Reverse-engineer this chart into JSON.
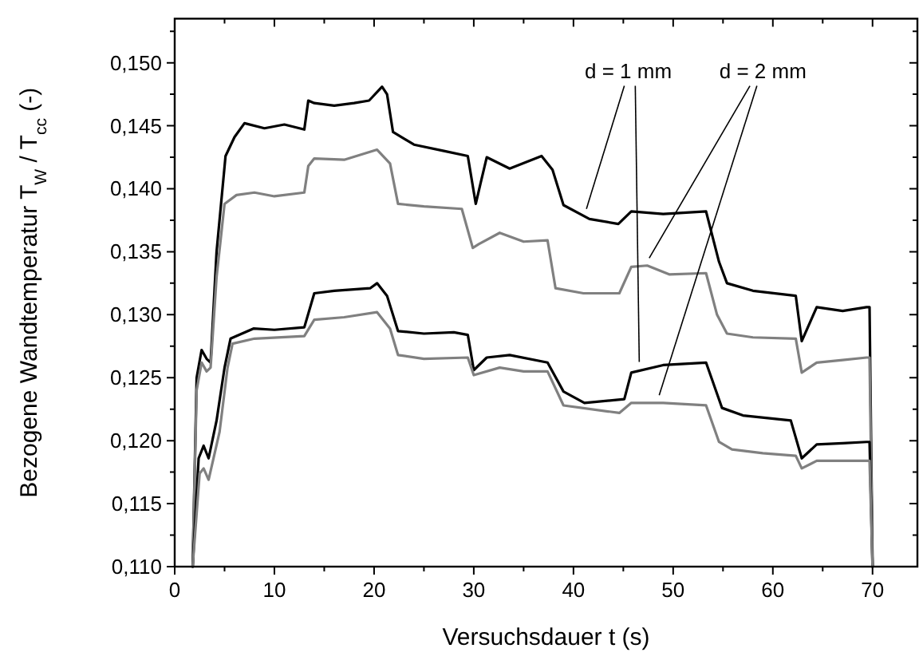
{
  "chart_data": {
    "type": "line",
    "xlabel": "Versuchsdauer t (s)",
    "ylabel": "Bezogene Wandtemperatur T$_{W}$ / T$_{cc}$ (-)",
    "xlim": [
      0,
      74.5
    ],
    "ylim": [
      0.11,
      0.1535
    ],
    "grid": false,
    "marker": "none",
    "line_style": "solid",
    "xticks": [
      0,
      {
        "value": 5,
        "label": null
      },
      10,
      {
        "value": 15,
        "label": null
      },
      20,
      {
        "value": 25,
        "label": null
      },
      30,
      {
        "value": 35,
        "label": null
      },
      40,
      {
        "value": 45,
        "label": null
      },
      50,
      {
        "value": 55,
        "label": null
      },
      60,
      {
        "value": 65,
        "label": null
      },
      70
    ],
    "yticks": [
      {
        "value": 0.11,
        "label": "0,110"
      },
      {
        "value": 0.1125,
        "label": null
      },
      {
        "value": 0.115,
        "label": "0,115"
      },
      {
        "value": 0.1175,
        "label": null
      },
      {
        "value": 0.12,
        "label": "0,120"
      },
      {
        "value": 0.1225,
        "label": null
      },
      {
        "value": 0.125,
        "label": "0,125"
      },
      {
        "value": 0.1275,
        "label": null
      },
      {
        "value": 0.13,
        "label": "0,130"
      },
      {
        "value": 0.1325,
        "label": null
      },
      {
        "value": 0.135,
        "label": "0,135"
      },
      {
        "value": 0.1375,
        "label": null
      },
      {
        "value": 0.14,
        "label": "0,140"
      },
      {
        "value": 0.1425,
        "label": null
      },
      {
        "value": 0.145,
        "label": "0,145"
      },
      {
        "value": 0.1475,
        "label": null
      },
      {
        "value": 0.15,
        "label": "0,150"
      },
      {
        "value": 0.1525,
        "label": null
      }
    ],
    "annotations": [
      {
        "text": "d = 1 mm",
        "x": 41.3,
        "y": 0.1384
      },
      {
        "text": "d = 2 mm",
        "x": 47.6,
        "y": 0.1345
      }
    ],
    "series": [
      {
        "color": "#000000",
        "x": [
          1.8,
          2.2,
          2.7,
          3.2,
          3.6,
          4.2,
          5.1,
          6,
          7,
          9,
          11,
          13,
          13.4,
          14,
          16,
          18,
          19.5,
          20.8,
          21.3,
          21.9,
          24,
          27,
          29.4,
          30.2,
          30.7,
          31.3,
          33.6,
          36.8,
          37.9,
          39,
          41.6,
          44.5,
          45.8,
          49,
          53.3,
          54.6,
          55.4,
          58,
          62.3,
          62.9,
          64.4,
          67,
          69.4,
          69.7,
          70
        ],
        "values": [
          0.11,
          0.125,
          0.1272,
          0.1265,
          0.1262,
          0.135,
          0.1426,
          0.1441,
          0.1452,
          0.1448,
          0.1451,
          0.1447,
          0.147,
          0.1468,
          0.1466,
          0.1468,
          0.147,
          0.1481,
          0.1475,
          0.1445,
          0.1435,
          0.143,
          0.1426,
          0.1388,
          0.1405,
          0.1425,
          0.1416,
          0.1426,
          0.1415,
          0.1387,
          0.1376,
          0.1372,
          0.1382,
          0.138,
          0.1382,
          0.1342,
          0.1325,
          0.1319,
          0.1315,
          0.1279,
          0.1306,
          0.1303,
          0.1306,
          0.1306,
          0.11
        ]
      },
      {
        "color": "#808080",
        "x": [
          1.8,
          2.2,
          2.7,
          3.2,
          3.6,
          4.2,
          5,
          6.2,
          8,
          10,
          13,
          13.4,
          14,
          17,
          20.3,
          21.6,
          22.4,
          25,
          28.8,
          29.9,
          30.5,
          32.6,
          35,
          37.4,
          38.2,
          41,
          44.6,
          45.8,
          47.4,
          49.6,
          53.3,
          54.4,
          55.4,
          58,
          62.3,
          62.9,
          64.4,
          67,
          69.4,
          69.7,
          70
        ],
        "values": [
          0.11,
          0.124,
          0.1262,
          0.1255,
          0.1258,
          0.133,
          0.1388,
          0.1395,
          0.1397,
          0.1394,
          0.1397,
          0.1418,
          0.1424,
          0.1423,
          0.1431,
          0.142,
          0.1388,
          0.1386,
          0.1384,
          0.1353,
          0.1356,
          0.1365,
          0.1358,
          0.1359,
          0.1321,
          0.1317,
          0.1317,
          0.1338,
          0.1339,
          0.1332,
          0.1333,
          0.13,
          0.1285,
          0.1282,
          0.1281,
          0.1254,
          0.1262,
          0.1264,
          0.1266,
          0.1266,
          0.11
        ]
      },
      {
        "color": "#000000",
        "x": [
          1.8,
          2.4,
          2.9,
          3.4,
          4.2,
          5,
          5.6,
          7.9,
          10,
          13,
          14,
          16,
          19.6,
          20.3,
          21.3,
          22.4,
          25,
          28,
          29.4,
          30,
          31.3,
          33.6,
          37.4,
          39,
          41.1,
          45.1,
          45.8,
          49,
          53.3,
          54.9,
          57,
          61.8,
          62.9,
          64.4,
          67,
          69.4,
          69.7,
          70
        ],
        "values": [
          0.11,
          0.1186,
          0.1196,
          0.1186,
          0.1216,
          0.1258,
          0.1281,
          0.1289,
          0.1288,
          0.129,
          0.1317,
          0.1319,
          0.1321,
          0.1325,
          0.1315,
          0.1287,
          0.1285,
          0.1286,
          0.1284,
          0.1256,
          0.1266,
          0.1268,
          0.1262,
          0.1239,
          0.123,
          0.1233,
          0.1254,
          0.126,
          0.1262,
          0.1226,
          0.122,
          0.1216,
          0.1186,
          0.1197,
          0.1198,
          0.1199,
          0.1199,
          0.11
        ]
      },
      {
        "color": "#808080",
        "x": [
          1.8,
          2.5,
          2.9,
          3.4,
          4.5,
          5.3,
          5.8,
          8,
          13,
          14,
          17,
          20.3,
          21.6,
          22.4,
          25,
          29.4,
          30,
          32.6,
          35,
          37.4,
          39,
          44.6,
          45.8,
          49,
          53.3,
          54.6,
          55.9,
          59,
          62.3,
          62.9,
          64.4,
          67,
          69.4,
          69.7,
          70
        ],
        "values": [
          0.11,
          0.1174,
          0.1178,
          0.1169,
          0.1207,
          0.1258,
          0.1277,
          0.1281,
          0.1283,
          0.1296,
          0.1298,
          0.1302,
          0.1289,
          0.1268,
          0.1265,
          0.1266,
          0.1252,
          0.1258,
          0.1255,
          0.1255,
          0.1228,
          0.1222,
          0.123,
          0.123,
          0.1228,
          0.1199,
          0.1193,
          0.119,
          0.1188,
          0.1178,
          0.1184,
          0.1184,
          0.1184,
          0.1184,
          0.11
        ]
      }
    ]
  }
}
